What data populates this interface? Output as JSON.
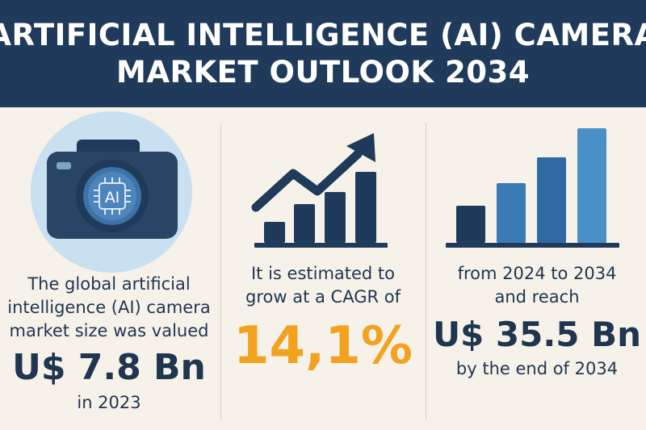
{
  "header": {
    "title_line1": "ARTIFICIAL INTELLIGENCE (AI) CAMERA",
    "title_line2": "MARKET OUTLOOK 2034"
  },
  "col1": {
    "camera_chip_label": "AI",
    "line1": "The global artificial",
    "line2": "intelligence (AI) camera",
    "line3": "market size was valued",
    "value": "U$ 7.8 Bn",
    "year": "in 2023"
  },
  "col2": {
    "line1": "It is estimated to",
    "line2": "grow at a CAGR of",
    "cagr": "14,1%"
  },
  "col3": {
    "line1": "from 2024 to 2034",
    "line2": "and reach",
    "value": "U$ 35.5 Bn",
    "line3": "by the end of 2034"
  },
  "colors": {
    "navy": "#1f3a5a",
    "accent_orange": "#f3a21f",
    "bar_blue": "#4a90c8",
    "circle_bg": "#c9e0f0"
  },
  "icons": [
    "camera-ai-icon",
    "growth-arrow-chart-icon",
    "rising-bar-chart-icon"
  ]
}
